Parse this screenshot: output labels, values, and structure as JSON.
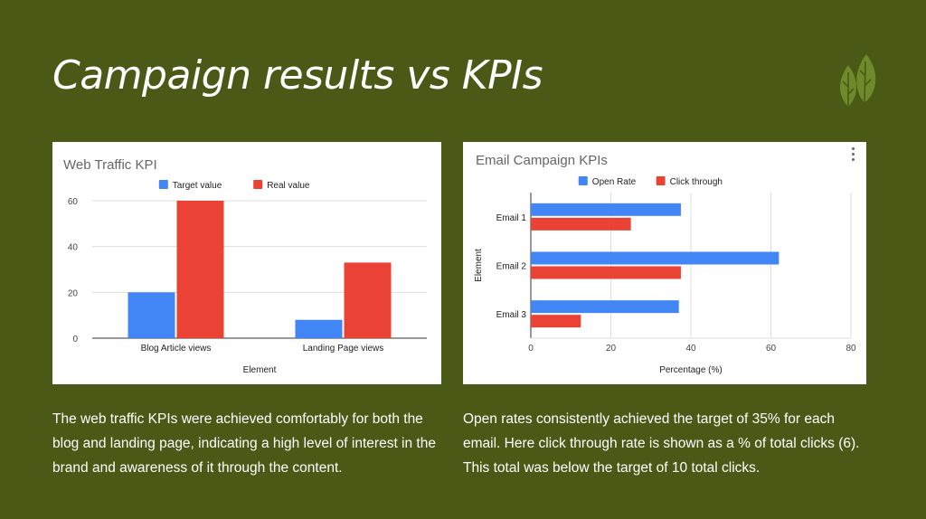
{
  "slide": {
    "title": "Campaign results vs KPIs",
    "logo_icon": "leaf-icon",
    "colors": {
      "background": "#4a5a16",
      "leaf": "#6e8a2a",
      "series_blue": "#4285f4",
      "series_red": "#ea4335"
    }
  },
  "captions": {
    "left": "The web traffic KPIs were achieved comfortably for both the blog and landing page, indicating a high level of interest in the brand and awareness of it through the content.",
    "right": "Open rates consistently achieved the target of 35% for each email. Here click through rate is shown as a % of total clicks (6). This total was below the target of 10 total clicks."
  },
  "chart_data": [
    {
      "type": "bar",
      "orientation": "vertical",
      "title": "Web Traffic KPI",
      "xlabel": "Element",
      "ylabel": "",
      "categories": [
        "Blog Article views",
        "Landing Page views"
      ],
      "series": [
        {
          "name": "Target value",
          "color": "#4285f4",
          "values": [
            20,
            8
          ]
        },
        {
          "name": "Real value",
          "color": "#ea4335",
          "values": [
            60,
            33
          ]
        }
      ],
      "ylim": [
        0,
        60
      ],
      "yticks": [
        0,
        20,
        40,
        60
      ],
      "grid": true,
      "legend": "top"
    },
    {
      "type": "bar",
      "orientation": "horizontal",
      "title": "Email Campaign KPIs",
      "xlabel": "Percentage (%)",
      "ylabel": "Element",
      "categories": [
        "Email 1",
        "Email 2",
        "Email 3"
      ],
      "series": [
        {
          "name": "Open Rate",
          "color": "#4285f4",
          "values": [
            37.5,
            62,
            37
          ]
        },
        {
          "name": "Click through",
          "color": "#ea4335",
          "values": [
            25,
            37.5,
            12.5
          ]
        }
      ],
      "xlim": [
        0,
        80
      ],
      "xticks": [
        0,
        20,
        40,
        60,
        80
      ],
      "grid": true,
      "legend": "top"
    }
  ]
}
